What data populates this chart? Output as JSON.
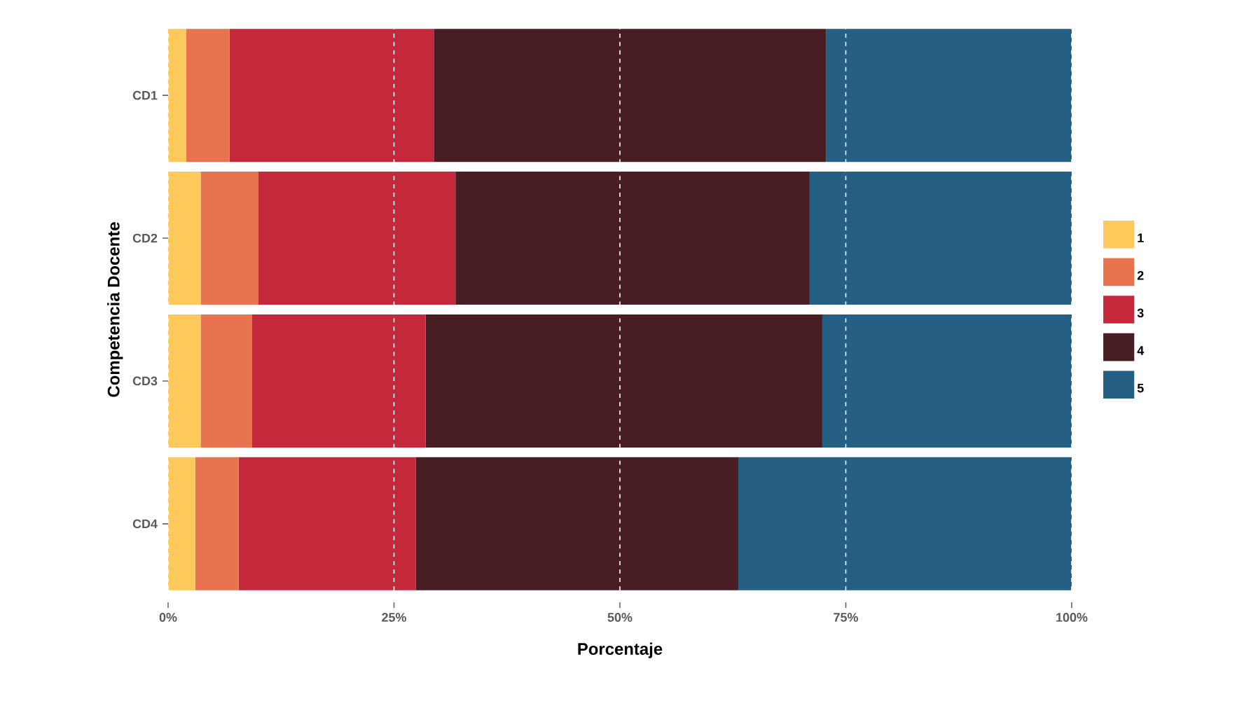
{
  "chart_data": {
    "type": "bar",
    "orientation": "horizontal",
    "stacked": true,
    "xlabel": "Porcentaje",
    "ylabel": "Competencia Docente",
    "categories": [
      "CD1",
      "CD2",
      "CD3",
      "CD4"
    ],
    "series": [
      {
        "name": "1",
        "color": "#fdc95a",
        "values": [
          2.0,
          3.6,
          3.6,
          3.0
        ]
      },
      {
        "name": "2",
        "color": "#e8744f",
        "values": [
          4.8,
          6.4,
          5.7,
          4.8
        ]
      },
      {
        "name": "3",
        "color": "#c3283b",
        "values": [
          22.6,
          21.8,
          19.2,
          19.6
        ]
      },
      {
        "name": "4",
        "color": "#481e24",
        "values": [
          43.4,
          39.2,
          43.9,
          35.7
        ]
      },
      {
        "name": "5",
        "color": "#265f84",
        "values": [
          27.2,
          29.0,
          27.6,
          36.9
        ]
      }
    ],
    "xlim": [
      0,
      100
    ],
    "xticks": [
      {
        "value": 0,
        "label": "0%"
      },
      {
        "value": 25,
        "label": "25%"
      },
      {
        "value": 50,
        "label": "50%"
      },
      {
        "value": 75,
        "label": "75%"
      },
      {
        "value": 100,
        "label": "100%"
      }
    ],
    "grid": "x",
    "legend": "right"
  }
}
